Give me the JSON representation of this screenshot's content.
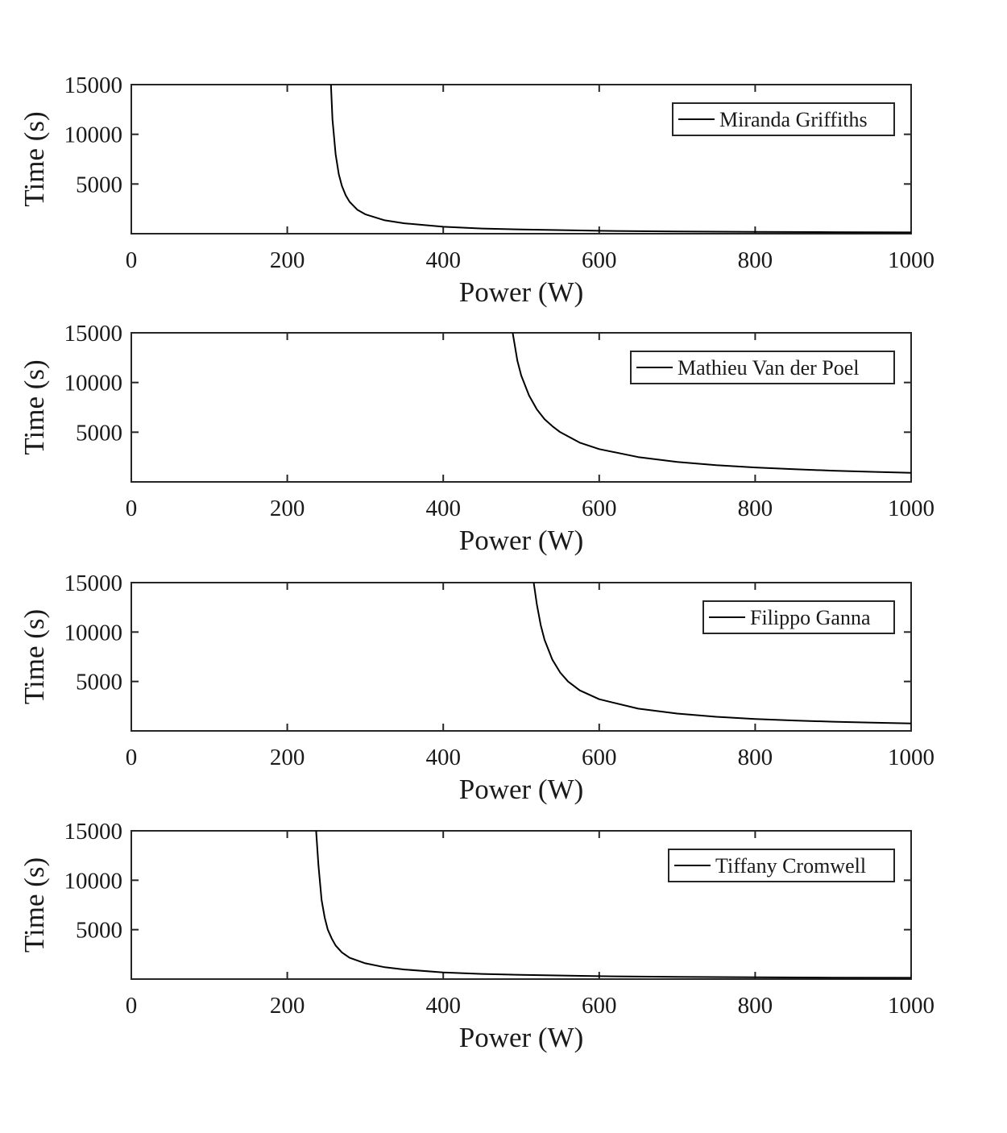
{
  "chart_data": [
    {
      "type": "line",
      "xlabel": "Power (W)",
      "ylabel": "Time (s)",
      "xlim": [
        0,
        1000
      ],
      "ylim": [
        0,
        15000
      ],
      "xticks": [
        0,
        200,
        400,
        600,
        800,
        1000
      ],
      "yticks": [
        5000,
        10000,
        15000
      ],
      "grid": false,
      "legend_position": "top-right",
      "series": [
        {
          "name": "Miranda Griffiths",
          "color": "#000000",
          "x": [
            256,
            258,
            262,
            266,
            270,
            275,
            280,
            290,
            300,
            325,
            350,
            400,
            450,
            500,
            600,
            700,
            800,
            900,
            1000
          ],
          "y": [
            15000,
            11500,
            8000,
            6000,
            4800,
            3850,
            3200,
            2400,
            1950,
            1350,
            1050,
            700,
            520,
            420,
            290,
            220,
            180,
            150,
            130
          ]
        }
      ]
    },
    {
      "type": "line",
      "xlabel": "Power (W)",
      "ylabel": "Time (s)",
      "xlim": [
        0,
        1000
      ],
      "ylim": [
        0,
        15000
      ],
      "xticks": [
        0,
        200,
        400,
        600,
        800,
        1000
      ],
      "yticks": [
        5000,
        10000,
        15000
      ],
      "grid": false,
      "legend_position": "top-right",
      "series": [
        {
          "name": "Mathieu Van der Poel",
          "color": "#000000",
          "x": [
            489,
            495,
            500,
            510,
            520,
            530,
            540,
            550,
            575,
            600,
            650,
            700,
            750,
            800,
            850,
            900,
            950,
            1000
          ],
          "y": [
            15000,
            12200,
            10700,
            8700,
            7300,
            6300,
            5600,
            5000,
            3950,
            3300,
            2500,
            2000,
            1680,
            1450,
            1270,
            1130,
            1010,
            920
          ]
        }
      ]
    },
    {
      "type": "line",
      "xlabel": "Power (W)",
      "ylabel": "Time (s)",
      "xlim": [
        0,
        1000
      ],
      "ylim": [
        0,
        15000
      ],
      "xticks": [
        0,
        200,
        400,
        600,
        800,
        1000
      ],
      "yticks": [
        5000,
        10000,
        15000
      ],
      "grid": false,
      "legend_position": "top-right",
      "series": [
        {
          "name": "Filippo Ganna",
          "color": "#000000",
          "x": [
            516,
            520,
            525,
            530,
            540,
            550,
            560,
            575,
            600,
            650,
            700,
            750,
            800,
            850,
            900,
            950,
            1000
          ],
          "y": [
            15000,
            12800,
            10700,
            9200,
            7200,
            5900,
            5000,
            4100,
            3200,
            2250,
            1750,
            1430,
            1210,
            1050,
            930,
            830,
            750
          ]
        }
      ]
    },
    {
      "type": "line",
      "xlabel": "Power (W)",
      "ylabel": "Time (s)",
      "xlim": [
        0,
        1000
      ],
      "ylim": [
        0,
        15000
      ],
      "xticks": [
        0,
        200,
        400,
        600,
        800,
        1000
      ],
      "yticks": [
        5000,
        10000,
        15000
      ],
      "grid": false,
      "legend_position": "top-right",
      "series": [
        {
          "name": "Tiffany Cromwell",
          "color": "#000000",
          "x": [
            237,
            240,
            244,
            248,
            252,
            257,
            262,
            270,
            280,
            300,
            325,
            350,
            400,
            450,
            500,
            600,
            700,
            800,
            900,
            1000
          ],
          "y": [
            15000,
            11500,
            8000,
            6200,
            5000,
            4100,
            3400,
            2700,
            2150,
            1600,
            1200,
            970,
            680,
            520,
            420,
            290,
            220,
            180,
            150,
            130
          ]
        }
      ]
    }
  ]
}
